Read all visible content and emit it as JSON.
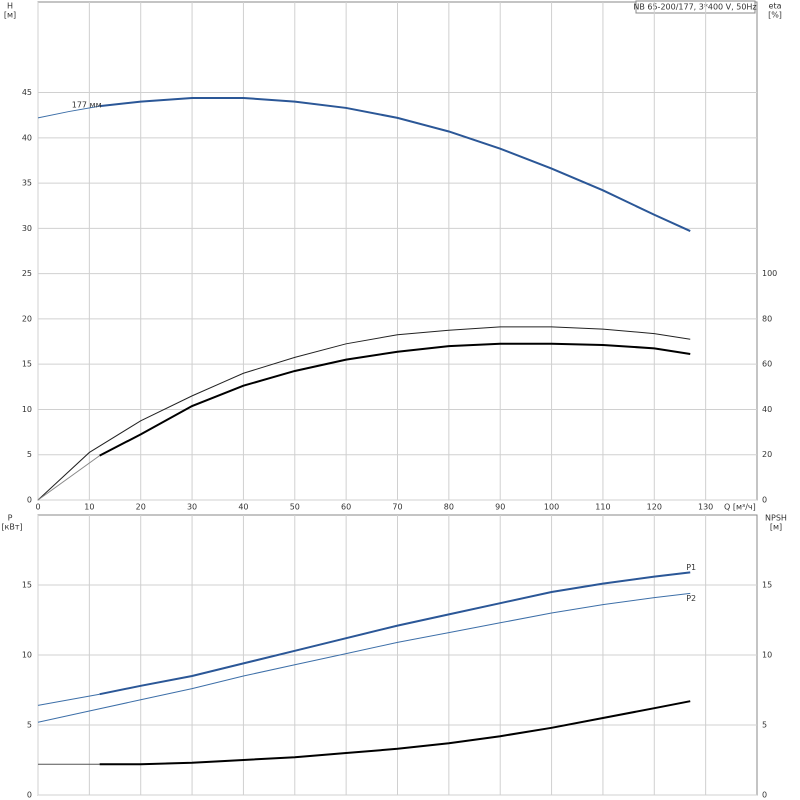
{
  "chart_data": [
    {
      "type": "line",
      "title": "NB 65-200/177, 3*400 V, 50Hz",
      "y_label": "H",
      "y_unit": "[м]",
      "y2_label": "eta",
      "y2_unit": "[%]",
      "x_label": "Q [м³/ч]",
      "xlim": [
        0,
        140
      ],
      "xticks": [
        0,
        10,
        20,
        30,
        40,
        50,
        60,
        70,
        80,
        90,
        100,
        110,
        120,
        130
      ],
      "ylim": [
        0,
        55
      ],
      "yticks": [
        0,
        5,
        10,
        15,
        20,
        25,
        30,
        35,
        40,
        45
      ],
      "y2lim": [
        0,
        220
      ],
      "y2ticks": [
        0,
        20,
        40,
        60,
        80,
        100
      ],
      "grid": true,
      "series": [
        {
          "color": "#3d6fa8",
          "width": 1,
          "x": [
            0,
            6,
            12
          ],
          "values": [
            42.2,
            42.9,
            43.5
          ]
        },
        {
          "label": "177 мм",
          "color": "#2b5797",
          "width": 2,
          "x": [
            12,
            20,
            30,
            40,
            50,
            60,
            70,
            80,
            90,
            100,
            110,
            120,
            127
          ],
          "values": [
            43.5,
            44.0,
            44.4,
            44.4,
            44.0,
            43.3,
            42.2,
            40.7,
            38.8,
            36.6,
            34.2,
            31.5,
            29.7
          ]
        },
        {
          "axis": "y2",
          "color": "#222222",
          "width": 1,
          "x": [
            0,
            10,
            20,
            30,
            40,
            50,
            60,
            70,
            80,
            90,
            100,
            110,
            120,
            127
          ],
          "values": [
            0,
            21,
            35,
            46,
            56,
            63,
            69,
            73,
            75,
            76.5,
            76.5,
            75.5,
            73.5,
            71
          ]
        },
        {
          "axis": "y2",
          "color": "#888888",
          "width": 1,
          "x": [
            0,
            12
          ],
          "values": [
            0,
            19.6
          ]
        },
        {
          "axis": "y2",
          "color": "#000000",
          "width": 2,
          "x": [
            12,
            20,
            30,
            40,
            50,
            60,
            70,
            80,
            90,
            100,
            110,
            120,
            127
          ],
          "values": [
            19.6,
            29,
            41.5,
            50.5,
            57,
            62,
            65.5,
            68,
            69,
            69,
            68.5,
            67,
            64.5
          ]
        }
      ]
    },
    {
      "type": "line",
      "y_label": "P",
      "y_unit": "[кВт]",
      "y2_label": "NPSH",
      "y2_unit": "[м]",
      "xlim": [
        0,
        140
      ],
      "xticks": [
        0,
        10,
        20,
        30,
        40,
        50,
        60,
        70,
        80,
        90,
        100,
        110,
        120,
        130
      ],
      "ylim": [
        0,
        20
      ],
      "yticks": [
        0,
        5,
        10,
        15
      ],
      "y2lim": [
        0,
        20
      ],
      "y2ticks": [
        0,
        5,
        10,
        15
      ],
      "grid": true,
      "series": [
        {
          "color": "#3d6fa8",
          "width": 1,
          "x": [
            0,
            12
          ],
          "values": [
            6.4,
            7.2
          ]
        },
        {
          "label": "P1",
          "color": "#2b5797",
          "width": 2,
          "x": [
            12,
            20,
            30,
            40,
            50,
            60,
            70,
            80,
            90,
            100,
            110,
            120,
            127
          ],
          "values": [
            7.2,
            7.8,
            8.5,
            9.4,
            10.3,
            11.2,
            12.1,
            12.9,
            13.7,
            14.5,
            15.1,
            15.6,
            15.9
          ]
        },
        {
          "label": "P2",
          "color": "#3d6fa8",
          "width": 1,
          "x": [
            0,
            10,
            20,
            30,
            40,
            50,
            60,
            70,
            80,
            90,
            100,
            110,
            120,
            127
          ],
          "values": [
            5.2,
            6.0,
            6.8,
            7.6,
            8.5,
            9.3,
            10.1,
            10.9,
            11.6,
            12.3,
            13.0,
            13.6,
            14.1,
            14.4
          ]
        },
        {
          "axis": "y2",
          "color": "#555555",
          "width": 1,
          "x": [
            0,
            12
          ],
          "values": [
            2.2,
            2.2
          ]
        },
        {
          "axis": "y2",
          "color": "#000000",
          "width": 2,
          "x": [
            12,
            20,
            30,
            40,
            50,
            60,
            70,
            80,
            90,
            100,
            110,
            120,
            127
          ],
          "values": [
            2.2,
            2.2,
            2.3,
            2.5,
            2.7,
            3.0,
            3.3,
            3.7,
            4.2,
            4.8,
            5.5,
            6.2,
            6.7
          ]
        }
      ]
    }
  ]
}
